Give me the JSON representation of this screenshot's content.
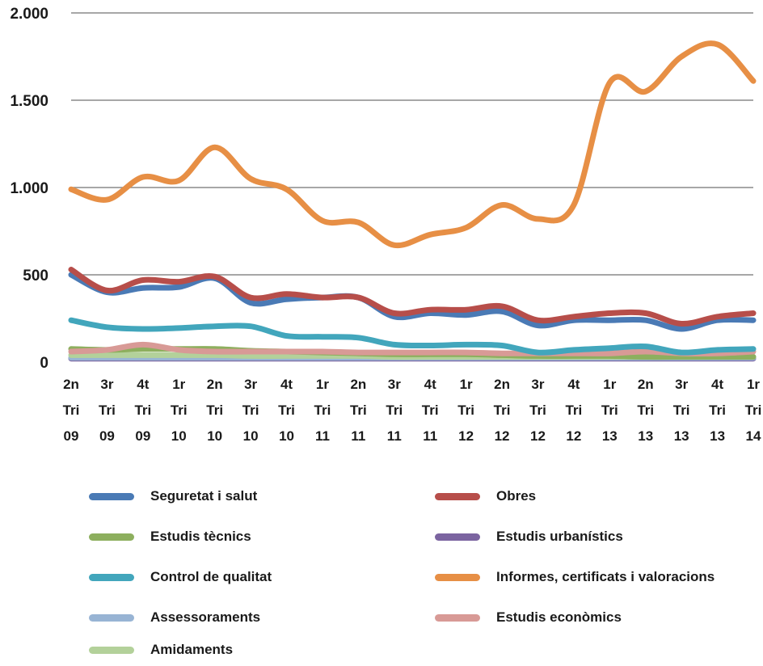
{
  "chart_data": {
    "type": "line",
    "title": "",
    "xlabel": "",
    "ylabel": "",
    "ylim": [
      0,
      2000
    ],
    "yticks": [
      0,
      500,
      1000,
      1500,
      2000
    ],
    "ytick_labels": [
      "0",
      "500",
      "1.000",
      "1.500",
      "2.000"
    ],
    "grid": true,
    "legend_position": "bottom",
    "categories": [
      [
        "2n",
        "Tri",
        "09"
      ],
      [
        "3r",
        "Tri",
        "09"
      ],
      [
        "4t",
        "Tri",
        "09"
      ],
      [
        "1r",
        "Tri",
        "10"
      ],
      [
        "2n",
        "Tri",
        "10"
      ],
      [
        "3r",
        "Tri",
        "10"
      ],
      [
        "4t",
        "Tri",
        "10"
      ],
      [
        "1r",
        "Tri",
        "11"
      ],
      [
        "2n",
        "Tri",
        "11"
      ],
      [
        "3r",
        "Tri",
        "11"
      ],
      [
        "4t",
        "Tri",
        "11"
      ],
      [
        "1r",
        "Tri",
        "12"
      ],
      [
        "2n",
        "Tri",
        "12"
      ],
      [
        "3r",
        "Tri",
        "12"
      ],
      [
        "4t",
        "Tri",
        "12"
      ],
      [
        "1r",
        "Tri",
        "13"
      ],
      [
        "2n",
        "Tri",
        "13"
      ],
      [
        "3r",
        "Tri",
        "13"
      ],
      [
        "4t",
        "Tri",
        "13"
      ],
      [
        "1r",
        "Tri",
        "14"
      ]
    ],
    "series": [
      {
        "name": "Seguretat i salut",
        "color": "#4a7ab5",
        "values": [
          500,
          400,
          425,
          430,
          480,
          340,
          360,
          370,
          370,
          260,
          280,
          270,
          290,
          210,
          240,
          240,
          240,
          190,
          240,
          240
        ]
      },
      {
        "name": "Obres",
        "color": "#b74e4a",
        "values": [
          530,
          410,
          470,
          460,
          490,
          370,
          390,
          370,
          370,
          280,
          300,
          300,
          320,
          240,
          260,
          280,
          280,
          220,
          260,
          280
        ]
      },
      {
        "name": "Estudis tècnics",
        "color": "#8daf5e",
        "values": [
          75,
          70,
          75,
          75,
          75,
          65,
          60,
          55,
          50,
          45,
          45,
          45,
          40,
          35,
          35,
          35,
          30,
          30,
          30,
          30
        ]
      },
      {
        "name": "Estudis urbanístics",
        "color": "#7b64a0",
        "values": [
          20,
          20,
          20,
          20,
          20,
          20,
          20,
          20,
          20,
          20,
          20,
          20,
          20,
          20,
          20,
          20,
          20,
          20,
          20,
          20
        ]
      },
      {
        "name": "Control de qualitat",
        "color": "#42a6bc",
        "values": [
          240,
          200,
          190,
          195,
          205,
          205,
          150,
          145,
          140,
          100,
          95,
          100,
          95,
          55,
          70,
          80,
          90,
          55,
          70,
          75
        ]
      },
      {
        "name": "Informes, certificats i valoracions",
        "color": "#e78f45",
        "values": [
          990,
          930,
          1060,
          1040,
          1230,
          1050,
          990,
          810,
          800,
          670,
          730,
          770,
          900,
          820,
          900,
          1600,
          1550,
          1750,
          1820,
          1610
        ]
      },
      {
        "name": "Assessoraments",
        "color": "#98b4d4",
        "values": [
          25,
          25,
          25,
          25,
          25,
          25,
          25,
          25,
          25,
          25,
          25,
          25,
          25,
          25,
          25,
          25,
          25,
          25,
          25,
          25
        ]
      },
      {
        "name": "Estudis econòmics",
        "color": "#d89a96",
        "values": [
          60,
          70,
          100,
          70,
          60,
          60,
          60,
          60,
          55,
          55,
          55,
          55,
          50,
          50,
          50,
          50,
          60,
          50,
          50,
          60
        ]
      },
      {
        "name": "Amidaments",
        "color": "#b3d19a",
        "values": [
          40,
          40,
          40,
          40,
          40,
          35,
          35,
          35,
          35,
          30,
          30,
          30,
          30,
          30,
          30,
          30,
          30,
          30,
          30,
          30
        ]
      }
    ]
  }
}
